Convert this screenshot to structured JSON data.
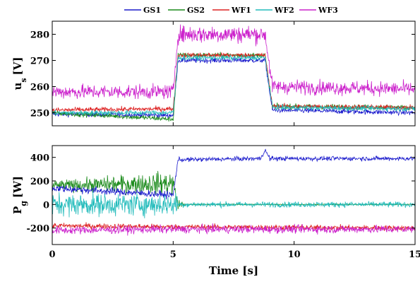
{
  "chart_data": {
    "type": "line",
    "legend": {
      "placement": "top",
      "entries": [
        {
          "name": "GS1",
          "color": "#1a1acc"
        },
        {
          "name": "GS2",
          "color": "#1a8a1a"
        },
        {
          "name": "WF1",
          "color": "#dd2222"
        },
        {
          "name": "WF2",
          "color": "#22bbbb"
        },
        {
          "name": "WF3",
          "color": "#cc22cc"
        }
      ]
    },
    "xlabel": "Time [s]",
    "xlim": [
      0,
      15
    ],
    "xticks": [
      "0",
      "5",
      "10",
      "15"
    ],
    "panels": [
      {
        "id": "us",
        "ylabel": "u",
        "ylabel_sub": "s",
        "ylabel_unit": "[V]",
        "ylim": [
          245,
          285
        ],
        "yticks": [
          "250",
          "260",
          "270",
          "280"
        ],
        "grid": false,
        "series": [
          {
            "name": "GS1",
            "x": [
              0,
              5,
              5.2,
              8.8,
              9.1,
              15
            ],
            "y": [
              249.5,
              249,
              270,
              270,
              251,
              250
            ]
          },
          {
            "name": "GS2",
            "x": [
              0,
              5,
              5.2,
              8.8,
              9.1,
              15
            ],
            "y": [
              250,
              247.5,
              272,
              272,
              252.5,
              252
            ]
          },
          {
            "name": "WF1",
            "x": [
              0,
              5,
              5.2,
              8.8,
              9.1,
              15
            ],
            "y": [
              251,
              251.5,
              272,
              272,
              252.5,
              252
            ]
          },
          {
            "name": "WF2",
            "x": [
              0,
              5,
              5.2,
              8.8,
              9.1,
              15
            ],
            "y": [
              250,
              250,
              271,
              271,
              252,
              251.5
            ]
          },
          {
            "name": "WF3",
            "x": [
              0,
              5,
              5.2,
              8.8,
              9.1,
              15
            ],
            "y": [
              258,
              258,
              280,
              280,
              260,
              259
            ]
          }
        ]
      },
      {
        "id": "pg",
        "ylabel": "P",
        "ylabel_sub": "g",
        "ylabel_unit": "[W]",
        "ylim": [
          -340,
          500
        ],
        "yticks": [
          "-200",
          "0",
          "200",
          "400"
        ],
        "grid": false,
        "series": [
          {
            "name": "GS1",
            "x": [
              0,
              5,
              5.2,
              8.6,
              8.8,
              9.0,
              15
            ],
            "y": [
              140,
              80,
              380,
              390,
              460,
              390,
              390
            ]
          },
          {
            "name": "GS2",
            "x": [
              0,
              5,
              5.2,
              15
            ],
            "y": [
              160,
              180,
              0,
              0
            ]
          },
          {
            "name": "WF1",
            "x": [
              0,
              5,
              15
            ],
            "y": [
              -180,
              -190,
              -200
            ]
          },
          {
            "name": "WF2",
            "x": [
              0,
              5,
              5.3,
              15
            ],
            "y": [
              0,
              0,
              0,
              0
            ]
          },
          {
            "name": "WF3",
            "x": [
              0,
              5,
              15
            ],
            "y": [
              -220,
              -210,
              -210
            ]
          }
        ]
      }
    ]
  }
}
